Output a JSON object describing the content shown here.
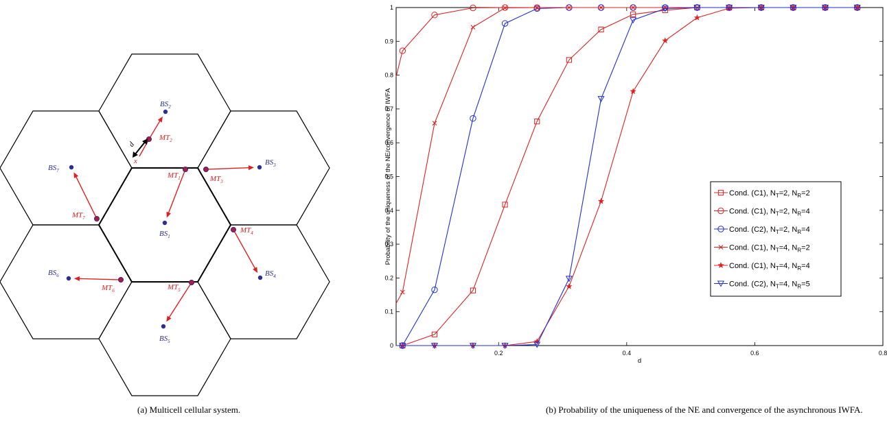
{
  "figure_a": {
    "caption": "(a) Multicell cellular system.",
    "d_label": "d",
    "x_marker": "x",
    "cells": [
      {
        "bs": "BS",
        "bs_sub": "1",
        "mt": "MT",
        "mt_sub": "1"
      },
      {
        "bs": "BS",
        "bs_sub": "2",
        "mt": "MT",
        "mt_sub": "2"
      },
      {
        "bs": "BS",
        "bs_sub": "3",
        "mt": "MT",
        "mt_sub": "3"
      },
      {
        "bs": "BS",
        "bs_sub": "4",
        "mt": "MT",
        "mt_sub": "4"
      },
      {
        "bs": "BS",
        "bs_sub": "5",
        "mt": "MT",
        "mt_sub": "5"
      },
      {
        "bs": "BS",
        "bs_sub": "6",
        "mt": "MT",
        "mt_sub": "6"
      },
      {
        "bs": "BS",
        "bs_sub": "7",
        "mt": "MT",
        "mt_sub": "7"
      }
    ],
    "colors": {
      "bs": "#2b2f8f",
      "mt": "#e02020",
      "hex": "#000000"
    }
  },
  "figure_b": {
    "caption": "(b) Probability of the uniqueness of the NE and convergence of the asynchronous IWFA."
  },
  "chart_data": {
    "type": "line",
    "title": "",
    "xlabel": "d",
    "ylabel": "Probability of the uniqueness of the NE/convergence of IWFA",
    "xlim": [
      0.04,
      0.8
    ],
    "ylim": [
      0,
      1
    ],
    "xticks": [
      0.2,
      0.4,
      0.6,
      0.8
    ],
    "xtick_labels": [
      "0.2",
      "0.4",
      "0.6",
      "0.8"
    ],
    "yticks": [
      0,
      0.1,
      0.2,
      0.3,
      0.4,
      0.5,
      0.6,
      0.7,
      0.8,
      0.9,
      1
    ],
    "ytick_labels": [
      "0",
      "0.1",
      "0.2",
      "0.3",
      "0.4",
      "0.5",
      "0.6",
      "0.7",
      "0.8",
      "0.9",
      "1"
    ],
    "grid": false,
    "legend_position": "center-right",
    "x": [
      0.04,
      0.05,
      0.1,
      0.16,
      0.21,
      0.26,
      0.31,
      0.36,
      0.41,
      0.46,
      0.51,
      0.56,
      0.61,
      0.66,
      0.71,
      0.76
    ],
    "series": [
      {
        "name": "Cond. (C1), N_T=2, N_R=2",
        "legend_main": "Cond. (C1), N",
        "t": "T",
        "mid": "=2, N",
        "r": "R",
        "tail": "=2",
        "color": "#e02020",
        "marker": "square",
        "values": [
          0.0,
          0.0,
          0.033,
          0.163,
          0.417,
          0.663,
          0.845,
          0.935,
          0.98,
          0.992,
          1,
          1,
          1,
          1,
          1,
          1
        ]
      },
      {
        "name": "Cond. (C1), N_T=2, N_R=4",
        "legend_main": "Cond. (C1), N",
        "t": "T",
        "mid": "=2, N",
        "r": "R",
        "tail": "=4",
        "color": "#e02020",
        "marker": "circle",
        "values": [
          0.795,
          0.872,
          0.978,
          0.999,
          1,
          1,
          1,
          1,
          1,
          1,
          1,
          1,
          1,
          1,
          1,
          1
        ]
      },
      {
        "name": "Cond. (C2), N_T=2, N_R=4",
        "legend_main": "Cond. (C2), N",
        "t": "T",
        "mid": "=2, N",
        "r": "R",
        "tail": "=4",
        "color": "#1f2fd6",
        "marker": "circle",
        "values": [
          0.0,
          0.0,
          0.165,
          0.672,
          0.953,
          0.997,
          1,
          1,
          1,
          1,
          1,
          1,
          1,
          1,
          1,
          1
        ]
      },
      {
        "name": "Cond. (C1), N_T=4, N_R=2",
        "legend_main": "Cond. (C1), N",
        "t": "T",
        "mid": "=4, N",
        "r": "R",
        "tail": "=2",
        "color": "#e02020",
        "marker": "x",
        "values": [
          0.125,
          0.158,
          0.658,
          0.942,
          0.999,
          1,
          1,
          1,
          1,
          1,
          1,
          1,
          1,
          1,
          1,
          1
        ]
      },
      {
        "name": "Cond. (C1), N_T=4, N_R=4",
        "legend_main": "Cond. (C1), N",
        "t": "T",
        "mid": "=4, N",
        "r": "R",
        "tail": "=4",
        "color": "#e02020",
        "marker": "star",
        "values": [
          0.0,
          0.0,
          0.0,
          0.0,
          0.0,
          0.012,
          0.175,
          0.427,
          0.752,
          0.902,
          0.97,
          0.998,
          1,
          1,
          1,
          1
        ]
      },
      {
        "name": "Cond. (C2), N_T=4, N_R=5",
        "legend_main": "Cond. (C2), N",
        "t": "T",
        "mid": "=4, N",
        "r": "R",
        "tail": "=5",
        "color": "#1f2fd6",
        "marker": "triangle-down",
        "values": [
          0.0,
          0.0,
          0.0,
          0.0,
          0.0,
          0.003,
          0.198,
          0.73,
          0.963,
          0.997,
          1,
          1,
          1,
          1,
          1,
          1
        ]
      }
    ]
  }
}
